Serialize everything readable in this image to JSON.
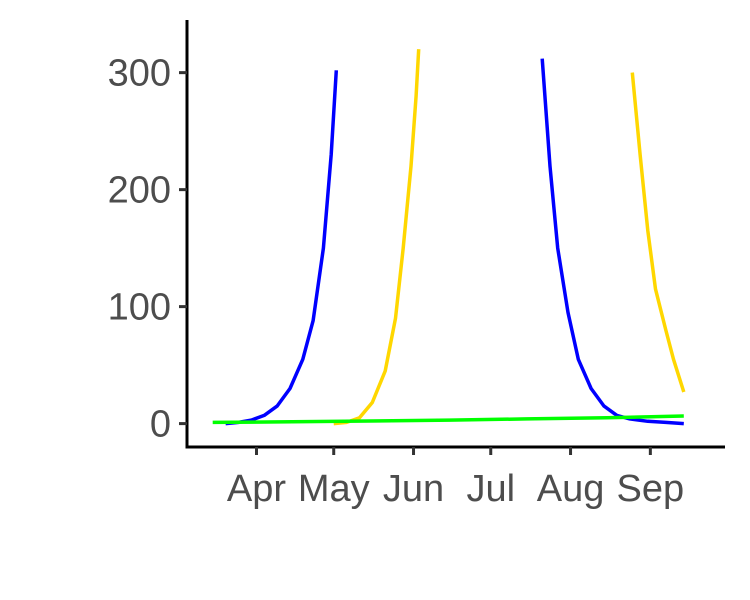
{
  "chart_data": {
    "type": "line",
    "title": "",
    "xlabel": "",
    "ylabel": "",
    "x_axis": {
      "type": "date",
      "range": [
        "2020-03-05",
        "2020-09-30"
      ],
      "ticks": [
        {
          "date": "2020-04-01",
          "label": "Apr"
        },
        {
          "date": "2020-05-01",
          "label": "May"
        },
        {
          "date": "2020-06-01",
          "label": "Jun"
        },
        {
          "date": "2020-07-01",
          "label": "Jul"
        },
        {
          "date": "2020-08-01",
          "label": "Aug"
        },
        {
          "date": "2020-09-01",
          "label": "Sep"
        }
      ]
    },
    "y_axis": {
      "range": [
        -20,
        345
      ],
      "ticks": [
        0,
        100,
        200,
        300
      ]
    },
    "grid": false,
    "legend": "none",
    "series": [
      {
        "color": "#0000ff",
        "points": [
          {
            "x": "2020-03-20",
            "y": 0
          },
          {
            "x": "2020-03-25",
            "y": 1
          },
          {
            "x": "2020-03-30",
            "y": 3
          },
          {
            "x": "2020-04-04",
            "y": 7
          },
          {
            "x": "2020-04-09",
            "y": 15
          },
          {
            "x": "2020-04-14",
            "y": 30
          },
          {
            "x": "2020-04-19",
            "y": 55
          },
          {
            "x": "2020-04-23",
            "y": 88
          },
          {
            "x": "2020-04-27",
            "y": 150
          },
          {
            "x": "2020-04-30",
            "y": 230
          },
          {
            "x": "2020-05-02",
            "y": 302
          }
        ]
      },
      {
        "color": "#0000ff",
        "points": [
          {
            "x": "2020-07-21",
            "y": 312
          },
          {
            "x": "2020-07-24",
            "y": 220
          },
          {
            "x": "2020-07-27",
            "y": 150
          },
          {
            "x": "2020-07-31",
            "y": 95
          },
          {
            "x": "2020-08-04",
            "y": 55
          },
          {
            "x": "2020-08-09",
            "y": 30
          },
          {
            "x": "2020-08-14",
            "y": 15
          },
          {
            "x": "2020-08-19",
            "y": 7
          },
          {
            "x": "2020-08-24",
            "y": 4
          },
          {
            "x": "2020-08-31",
            "y": 2
          },
          {
            "x": "2020-09-07",
            "y": 1
          },
          {
            "x": "2020-09-14",
            "y": 0
          }
        ]
      },
      {
        "color": "#ffd700",
        "points": [
          {
            "x": "2020-05-01",
            "y": 0
          },
          {
            "x": "2020-05-06",
            "y": 1
          },
          {
            "x": "2020-05-11",
            "y": 5
          },
          {
            "x": "2020-05-16",
            "y": 18
          },
          {
            "x": "2020-05-21",
            "y": 45
          },
          {
            "x": "2020-05-25",
            "y": 90
          },
          {
            "x": "2020-05-28",
            "y": 150
          },
          {
            "x": "2020-05-31",
            "y": 220
          },
          {
            "x": "2020-06-02",
            "y": 280
          },
          {
            "x": "2020-06-03",
            "y": 320
          }
        ]
      },
      {
        "color": "#ffd700",
        "points": [
          {
            "x": "2020-08-25",
            "y": 300
          },
          {
            "x": "2020-08-28",
            "y": 230
          },
          {
            "x": "2020-08-31",
            "y": 165
          },
          {
            "x": "2020-09-03",
            "y": 115
          },
          {
            "x": "2020-09-07",
            "y": 80
          },
          {
            "x": "2020-09-10",
            "y": 55
          },
          {
            "x": "2020-09-14",
            "y": 27
          }
        ]
      },
      {
        "color": "#00ff00",
        "points": [
          {
            "x": "2020-03-15",
            "y": 1
          },
          {
            "x": "2020-04-15",
            "y": 1.5
          },
          {
            "x": "2020-05-15",
            "y": 2.2
          },
          {
            "x": "2020-06-15",
            "y": 3
          },
          {
            "x": "2020-07-15",
            "y": 4
          },
          {
            "x": "2020-08-15",
            "y": 5
          },
          {
            "x": "2020-09-14",
            "y": 6.5
          }
        ]
      }
    ]
  }
}
